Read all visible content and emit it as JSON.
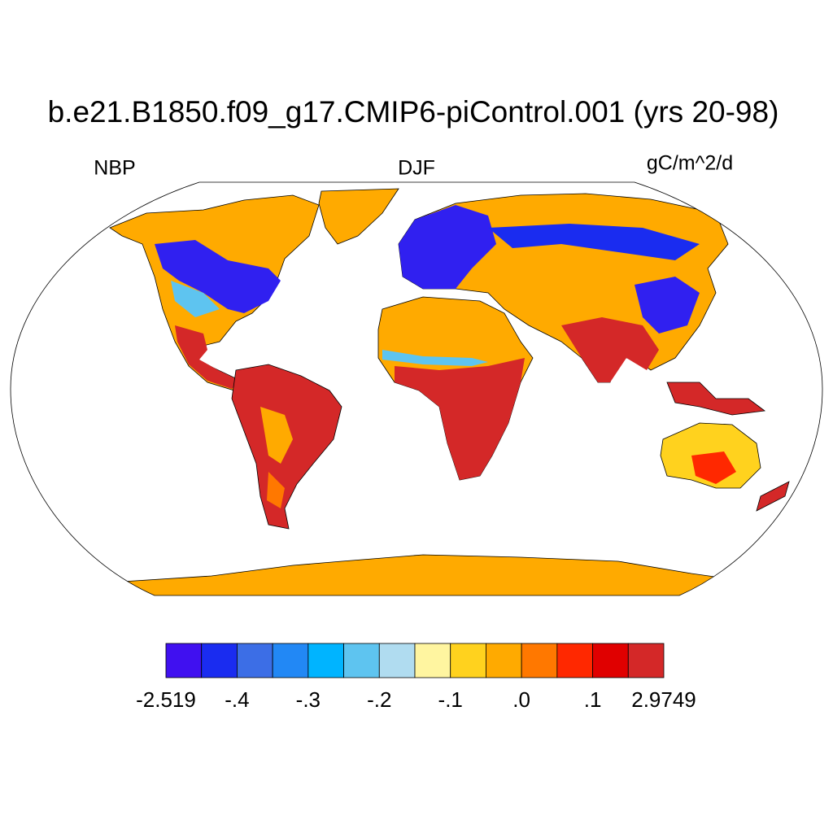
{
  "title": "b.e21.B1850.f09_g17.CMIP6-piControl.001 (yrs 20-98)",
  "left_label": "NBP",
  "center_label": "DJF",
  "right_label": "gC/m^2/d",
  "colorbar": {
    "colors": [
      "#4010f0",
      "#1a2cf0",
      "#3c6ee6",
      "#2288f5",
      "#00b4ff",
      "#5ec4f0",
      "#b0dcf0",
      "#fff5a0",
      "#ffd21e",
      "#ffaa00",
      "#ff7800",
      "#ff2800",
      "#e00000",
      "#d42828"
    ],
    "ticks": [
      {
        "value": -2.519,
        "label": "-2.519"
      },
      {
        "value": -0.4,
        "label": "-.4"
      },
      {
        "value": -0.3,
        "label": "-.3"
      },
      {
        "value": -0.2,
        "label": "-.2"
      },
      {
        "value": -0.1,
        "label": "-.1"
      },
      {
        "value": 0.0,
        "label": ".0"
      },
      {
        "value": 0.1,
        "label": ".1"
      },
      {
        "value": 2.9749,
        "label": "2.9749"
      }
    ]
  }
}
